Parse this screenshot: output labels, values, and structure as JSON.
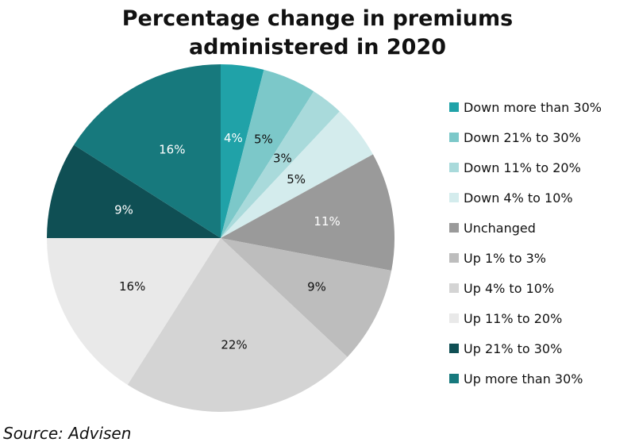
{
  "chart_data": {
    "type": "pie",
    "title_lines": [
      "Percentage change in premiums",
      "administered in 2020"
    ],
    "categories": [
      "Down more than 30%",
      "Down 21% to 30%",
      "Down 11% to 20%",
      "Down 4% to 10%",
      "Unchanged",
      "Up 1% to 3%",
      "Up 4% to 10%",
      "Up 11% to 20%",
      "Up 21% to 30%",
      "Up more than 30%"
    ],
    "values": [
      4,
      5,
      3,
      5,
      11,
      9,
      22,
      16,
      9,
      16
    ],
    "data_labels": [
      "4%",
      "5%",
      "3%",
      "5%",
      "11%",
      "9%",
      "22%",
      "16%",
      "9%",
      "16%"
    ],
    "colors": [
      "#20a2a8",
      "#7cc8c9",
      "#a9dadb",
      "#d4eced",
      "#9a9a9a",
      "#bdbdbd",
      "#d4d4d4",
      "#e9e9e9",
      "#0f4f54",
      "#17797d"
    ],
    "label_colors": [
      "#ffffff",
      "#111111",
      "#111111",
      "#111111",
      "#ffffff",
      "#111111",
      "#111111",
      "#111111",
      "#ffffff",
      "#ffffff"
    ],
    "legend_position": "right"
  },
  "source": "Source: Advisen"
}
